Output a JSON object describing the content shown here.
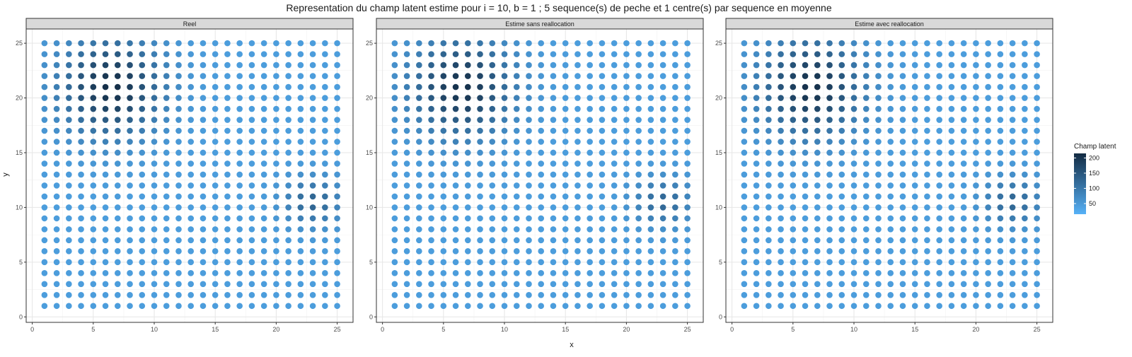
{
  "chart_data": {
    "type": "scatter",
    "title": "Representation du champ latent estime pour i = 10, b = 1 ; 5 sequence(s) de peche et 1 centre(s) par sequence en moyenne",
    "xlabel": "x",
    "ylabel": "y",
    "xlim": [
      -0.5,
      26.3
    ],
    "ylim": [
      -0.5,
      26.3
    ],
    "x_ticks": [
      0,
      5,
      10,
      15,
      20,
      25
    ],
    "y_ticks": [
      0,
      5,
      10,
      15,
      20,
      25
    ],
    "x_tick_labels": [
      "0",
      "5",
      "10",
      "15",
      "20",
      "25"
    ],
    "y_tick_labels": [
      "0",
      "5",
      "10",
      "15",
      "20",
      "25"
    ],
    "grid": true,
    "grid_points": {
      "x_range": [
        1,
        25
      ],
      "y_range": [
        1,
        25
      ],
      "step": 1
    },
    "color_scale": {
      "name": "Champ latent",
      "ticks": [
        50,
        100,
        150,
        200
      ],
      "tick_labels": [
        "50",
        "100",
        "150",
        "200"
      ],
      "range": [
        15,
        215
      ],
      "low_color": "#56B1F7",
      "high_color": "#132B43"
    },
    "legend_position": "right",
    "background_field_value": 45,
    "panels": [
      {
        "name": "Reel",
        "hotspots": [
          {
            "cx": 6.5,
            "cy": 21,
            "sx": 2.8,
            "sy": 3.0,
            "amp": 165
          },
          {
            "cx": 23,
            "cy": 10.5,
            "sx": 1.6,
            "sy": 1.5,
            "amp": 85
          }
        ]
      },
      {
        "name": "Estime sans reallocation",
        "hotspots": [
          {
            "cx": 6.5,
            "cy": 21,
            "sx": 2.8,
            "sy": 3.0,
            "amp": 160
          },
          {
            "cx": 23,
            "cy": 10.5,
            "sx": 1.6,
            "sy": 1.5,
            "amp": 80
          }
        ]
      },
      {
        "name": "Estime avec reallocation",
        "hotspots": [
          {
            "cx": 6.5,
            "cy": 21,
            "sx": 2.8,
            "sy": 3.0,
            "amp": 162
          },
          {
            "cx": 23,
            "cy": 10.5,
            "sx": 1.6,
            "sy": 1.5,
            "amp": 82
          }
        ]
      }
    ]
  }
}
